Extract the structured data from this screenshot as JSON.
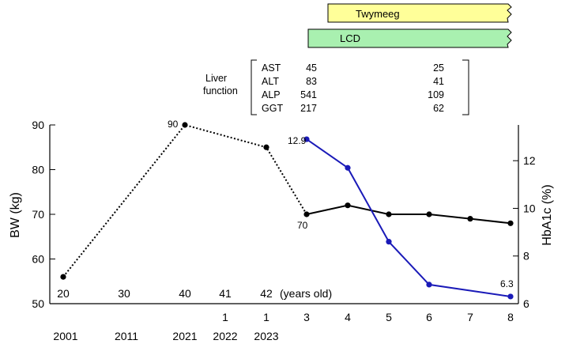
{
  "chart_data": {
    "type": "line",
    "ylabel_left": "BW (kg)",
    "ylabel_right": "HbA1c (%)",
    "ylim_left": [
      50,
      90
    ],
    "ylim_right": [
      6,
      13.5
    ],
    "yticks_left": [
      "50",
      "60",
      "70",
      "80",
      "90"
    ],
    "yticks_right": [
      "6",
      "8",
      "10",
      "12"
    ],
    "age_labels": [
      "20",
      "30",
      "40",
      "41",
      "42",
      "(years old)"
    ],
    "x_labels_top": [
      "1",
      "1",
      "3",
      "4",
      "5",
      "6",
      "7",
      "8"
    ],
    "x_labels_bottom": [
      "2001",
      "2011",
      "2021",
      "2022",
      "2023"
    ],
    "series": [
      {
        "axis": "left",
        "color": "#000000",
        "points_before": [
          56,
          90,
          85,
          70
        ],
        "points_after": [
          70,
          72,
          70,
          70,
          69,
          68
        ]
      },
      {
        "axis": "right",
        "color": "#1a1ab8",
        "points": [
          12.9,
          11.7,
          8.6,
          6.8,
          6.3
        ]
      }
    ],
    "annotations": [
      "90",
      "70",
      "12.9",
      "6.3"
    ],
    "treatments": [
      "Twymeeg",
      "LCD"
    ]
  },
  "liver_function": {
    "label_line1": "Liver",
    "label_line2": "function",
    "rows": [
      {
        "name": "AST",
        "before": "45",
        "after": "25"
      },
      {
        "name": "ALT",
        "before": "83",
        "after": "41"
      },
      {
        "name": "ALP",
        "before": "541",
        "after": "109"
      },
      {
        "name": "GGT",
        "before": "217",
        "after": "62"
      }
    ]
  },
  "colors": {
    "twymeeg_fill": "#ffff99",
    "lcd_fill": "#a9f0b0",
    "hba1c_line": "#1a1ab8",
    "bw_line": "#000000"
  }
}
